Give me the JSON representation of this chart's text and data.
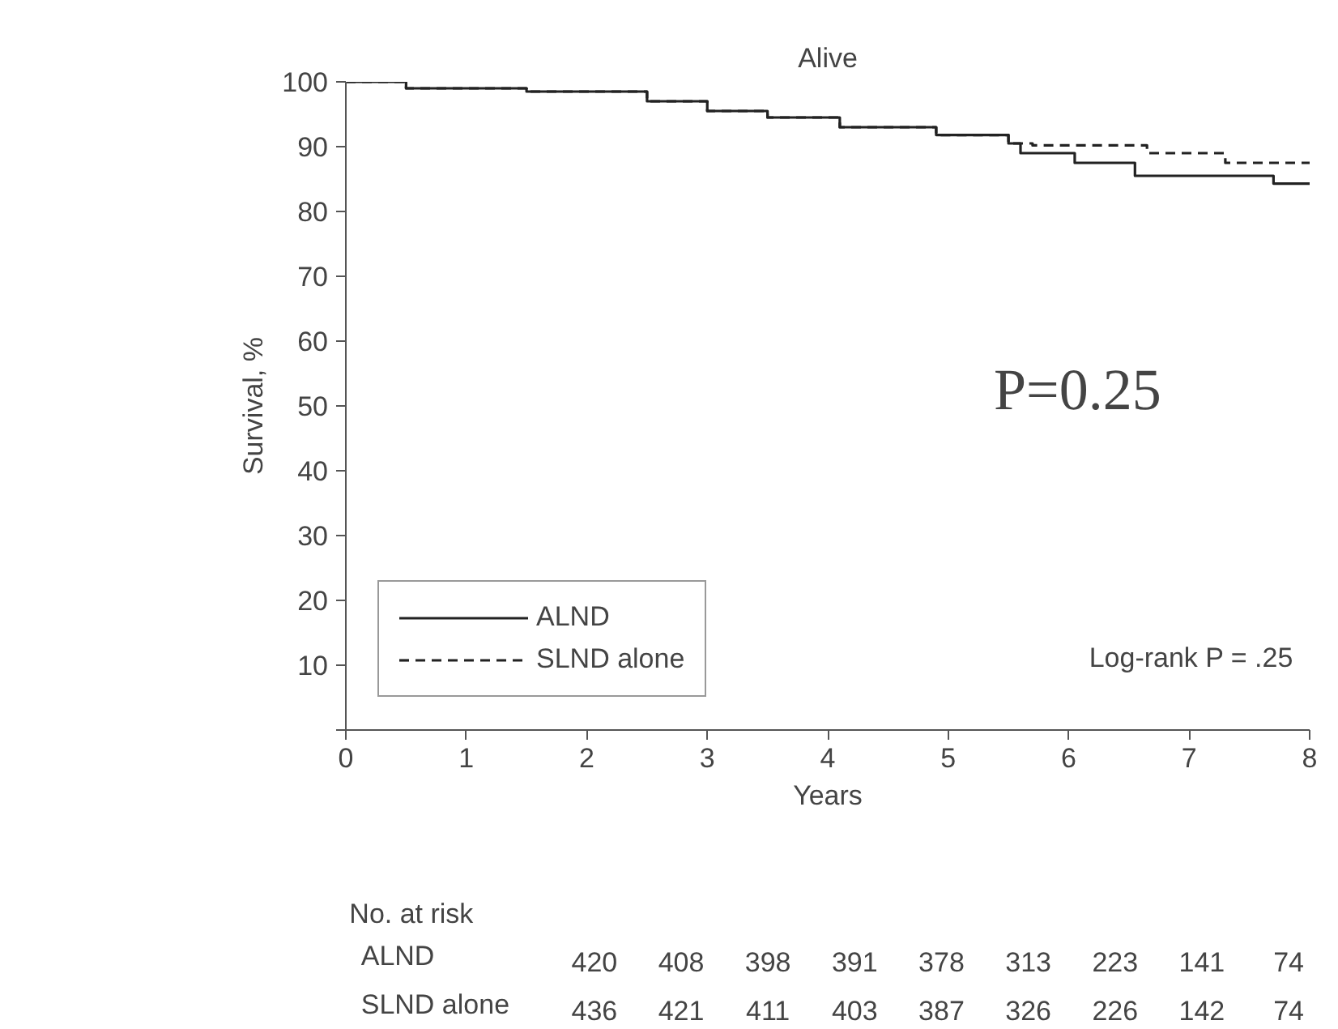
{
  "chart_data": {
    "type": "step",
    "title": "Alive",
    "xlabel": "Years",
    "ylabel": "Survival, %",
    "xlim": [
      0,
      8
    ],
    "xticks": [
      0,
      1,
      2,
      3,
      4,
      5,
      6,
      7,
      8
    ],
    "ylim": [
      0,
      100
    ],
    "yticks": [
      {
        "value": 0,
        "label": null
      },
      10,
      20,
      30,
      40,
      50,
      60,
      70,
      80,
      90,
      100
    ],
    "legend": "bottom left",
    "grid": false,
    "marker": "none",
    "series": [
      {
        "name": "ALND",
        "color": "#222222",
        "line_style": "solid",
        "x": [
          0,
          0.5,
          1.5,
          2.5,
          3.0,
          3.5,
          4.1,
          4.9,
          5.5,
          5.6,
          6.05,
          6.55,
          7.7,
          8
        ],
        "values": [
          100,
          99,
          98.5,
          97,
          95.5,
          94.5,
          93,
          91.8,
          90.5,
          89,
          87.5,
          85.5,
          84.3,
          84.3
        ]
      },
      {
        "name": "SLND alone",
        "color": "#222222",
        "line_style": "dashed",
        "x": [
          0,
          0.5,
          1.5,
          2.5,
          3.0,
          3.5,
          4.1,
          4.9,
          5.5,
          5.7,
          6.65,
          7.3,
          8
        ],
        "values": [
          100,
          99,
          98.5,
          97,
          95.5,
          94.5,
          93,
          91.8,
          90.5,
          90.2,
          89,
          87.5,
          87.5
        ]
      }
    ],
    "annotations": [
      "P=0.25",
      "Log-rank P = .25",
      "No. at risk",
      "ALND",
      "420",
      "408",
      "398",
      "391",
      "378",
      "313",
      "223",
      "141",
      "74",
      "SLND alone",
      "436",
      "421",
      "411",
      "403",
      "387",
      "326",
      "226",
      "142",
      "74"
    ]
  }
}
